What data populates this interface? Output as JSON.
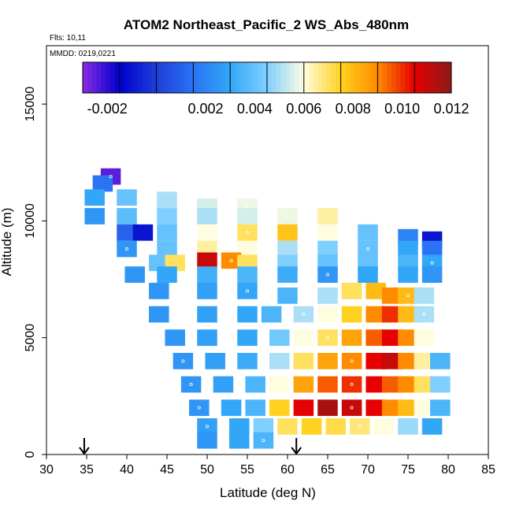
{
  "chart_data": {
    "type": "heatmap",
    "title": "ATOM2 Northeast_Pacific_2 WS_Abs_480nm",
    "annotations": [
      "Flts: 10,11",
      "MMDD: 0219,0221"
    ],
    "xlabel": "Latitude (deg N)",
    "ylabel": "Altitude (m)",
    "xlim": [
      30,
      85
    ],
    "ylim": [
      0,
      17500
    ],
    "x_ticks": [
      30,
      35,
      40,
      45,
      50,
      55,
      60,
      65,
      70,
      75,
      80,
      85
    ],
    "y_ticks": [
      0,
      5000,
      10000,
      15000
    ],
    "colorbar": {
      "min": -0.003,
      "max": 0.012,
      "tick_values": [
        -0.002,
        0.002,
        0.004,
        0.006,
        0.008,
        0.01,
        0.012
      ],
      "tick_labels": [
        "-0.002",
        "0.002",
        "0.004",
        "0.006",
        "0.008",
        "0.010",
        "0.012"
      ],
      "band_edges": [
        -0.003,
        -0.0015,
        0.0,
        0.0015,
        0.003,
        0.0045,
        0.006,
        0.0075,
        0.009,
        0.0105,
        0.012
      ],
      "colors": [
        "#8a2be2",
        "#0000cd",
        "#1e3fd6",
        "#2a73f5",
        "#33a7f7",
        "#7fd0ff",
        "#fffde0",
        "#ffd21f",
        "#ff8c00",
        "#e60000",
        "#8b1a1a"
      ]
    },
    "arrows_latitude": [
      34.7,
      61.1
    ],
    "grid": false,
    "cells": [
      [
        38,
        11900,
        -0.0025
      ],
      [
        37,
        11600,
        0.0015
      ],
      [
        36,
        11000,
        0.003
      ],
      [
        40,
        11000,
        0.004
      ],
      [
        45,
        10900,
        0.005
      ],
      [
        50,
        10600,
        0.0055
      ],
      [
        55,
        10600,
        0.0058
      ],
      [
        36,
        10200,
        0.0025
      ],
      [
        40,
        10200,
        0.0038
      ],
      [
        45,
        10200,
        0.0045
      ],
      [
        50,
        10200,
        0.005
      ],
      [
        55,
        10200,
        0.0055
      ],
      [
        60,
        10200,
        0.0058
      ],
      [
        65,
        10200,
        0.0065
      ],
      [
        40,
        9500,
        0.001
      ],
      [
        42,
        9500,
        -0.001
      ],
      [
        45,
        9500,
        0.004
      ],
      [
        50,
        9500,
        0.006
      ],
      [
        55,
        9500,
        0.007
      ],
      [
        60,
        9500,
        0.0078
      ],
      [
        65,
        9500,
        0.006
      ],
      [
        70,
        9500,
        0.004
      ],
      [
        75,
        9300,
        0.002
      ],
      [
        78,
        9200,
        -0.001
      ],
      [
        40,
        8800,
        0.0025
      ],
      [
        45,
        8800,
        0.004
      ],
      [
        50,
        8800,
        0.0065
      ],
      [
        55,
        8800,
        0.006
      ],
      [
        60,
        8800,
        0.005
      ],
      [
        65,
        8800,
        0.0045
      ],
      [
        70,
        8800,
        0.004
      ],
      [
        75,
        8800,
        0.003
      ],
      [
        78,
        8800,
        0.0015
      ],
      [
        44,
        8200,
        0.004
      ],
      [
        46,
        8200,
        0.007
      ],
      [
        50,
        8300,
        0.011
      ],
      [
        53,
        8300,
        0.009
      ],
      [
        55,
        8200,
        0.007
      ],
      [
        60,
        8200,
        0.0045
      ],
      [
        65,
        8200,
        0.004
      ],
      [
        70,
        8200,
        0.004
      ],
      [
        75,
        8200,
        0.0035
      ],
      [
        78,
        8200,
        0.003
      ],
      [
        41,
        7700,
        0.0025
      ],
      [
        45,
        7700,
        0.003
      ],
      [
        50,
        7700,
        0.0033
      ],
      [
        55,
        7700,
        0.0035
      ],
      [
        60,
        7700,
        0.0032
      ],
      [
        65,
        7700,
        0.0025
      ],
      [
        70,
        7700,
        0.003
      ],
      [
        75,
        7700,
        0.003
      ],
      [
        78,
        7700,
        0.0025
      ],
      [
        44,
        7000,
        0.0025
      ],
      [
        50,
        7000,
        0.0028
      ],
      [
        55,
        7000,
        0.003
      ],
      [
        60,
        6800,
        0.0035
      ],
      [
        65,
        6800,
        0.005
      ],
      [
        68,
        7000,
        0.007
      ],
      [
        71,
        7000,
        0.008
      ],
      [
        73,
        6800,
        0.009
      ],
      [
        75,
        6800,
        0.008
      ],
      [
        77,
        6800,
        0.005
      ],
      [
        44,
        6000,
        0.0025
      ],
      [
        50,
        6000,
        0.0028
      ],
      [
        55,
        6000,
        0.003
      ],
      [
        58,
        6000,
        0.0035
      ],
      [
        62,
        6000,
        0.005
      ],
      [
        65,
        6000,
        0.006
      ],
      [
        68,
        6000,
        0.0075
      ],
      [
        71,
        6000,
        0.009
      ],
      [
        73,
        6000,
        0.01
      ],
      [
        75,
        6000,
        0.008
      ],
      [
        77,
        6000,
        0.005
      ],
      [
        46,
        5000,
        0.0025
      ],
      [
        50,
        5000,
        0.0028
      ],
      [
        55,
        5000,
        0.003
      ],
      [
        59,
        5000,
        0.0042
      ],
      [
        62,
        5000,
        0.006
      ],
      [
        65,
        5000,
        0.007
      ],
      [
        68,
        5000,
        0.0085
      ],
      [
        71,
        5000,
        0.0095
      ],
      [
        73,
        5000,
        0.0105
      ],
      [
        75,
        5000,
        0.009
      ],
      [
        77,
        5000,
        0.006
      ],
      [
        47,
        4000,
        0.0025
      ],
      [
        51,
        4000,
        0.0028
      ],
      [
        55,
        4000,
        0.0032
      ],
      [
        59,
        4000,
        0.005
      ],
      [
        62,
        4000,
        0.007
      ],
      [
        65,
        4000,
        0.0085
      ],
      [
        68,
        4000,
        0.009
      ],
      [
        71,
        4000,
        0.0105
      ],
      [
        73,
        4000,
        0.011
      ],
      [
        75,
        4000,
        0.009
      ],
      [
        77,
        4000,
        0.0065
      ],
      [
        79,
        4000,
        0.0035
      ],
      [
        48,
        3000,
        0.0025
      ],
      [
        52,
        3000,
        0.0028
      ],
      [
        56,
        3000,
        0.0035
      ],
      [
        59,
        3000,
        0.006
      ],
      [
        62,
        3000,
        0.0085
      ],
      [
        65,
        3000,
        0.0095
      ],
      [
        68,
        3000,
        0.01
      ],
      [
        71,
        3000,
        0.0105
      ],
      [
        73,
        3000,
        0.0095
      ],
      [
        75,
        3000,
        0.009
      ],
      [
        77,
        3000,
        0.007
      ],
      [
        79,
        3000,
        0.0045
      ],
      [
        49,
        2000,
        0.0025
      ],
      [
        53,
        2000,
        0.003
      ],
      [
        56,
        2000,
        0.0035
      ],
      [
        59,
        2000,
        0.0075
      ],
      [
        62,
        2000,
        0.0105
      ],
      [
        65,
        2000,
        0.0115
      ],
      [
        68,
        2000,
        0.011
      ],
      [
        71,
        2000,
        0.0105
      ],
      [
        73,
        2000,
        0.009
      ],
      [
        75,
        2000,
        0.008
      ],
      [
        77,
        2000,
        0.006
      ],
      [
        79,
        2000,
        0.0035
      ],
      [
        50,
        1200,
        0.0028
      ],
      [
        54,
        1200,
        0.003
      ],
      [
        57,
        1200,
        0.0045
      ],
      [
        60,
        1200,
        0.007
      ],
      [
        63,
        1200,
        0.0075
      ],
      [
        66,
        1200,
        0.0072
      ],
      [
        69,
        1200,
        0.0068
      ],
      [
        72,
        1200,
        0.006
      ],
      [
        75,
        1200,
        0.0048
      ],
      [
        78,
        1200,
        0.003
      ],
      [
        50,
        600,
        0.0025
      ],
      [
        54,
        600,
        0.003
      ],
      [
        57,
        600,
        0.0035
      ]
    ]
  }
}
